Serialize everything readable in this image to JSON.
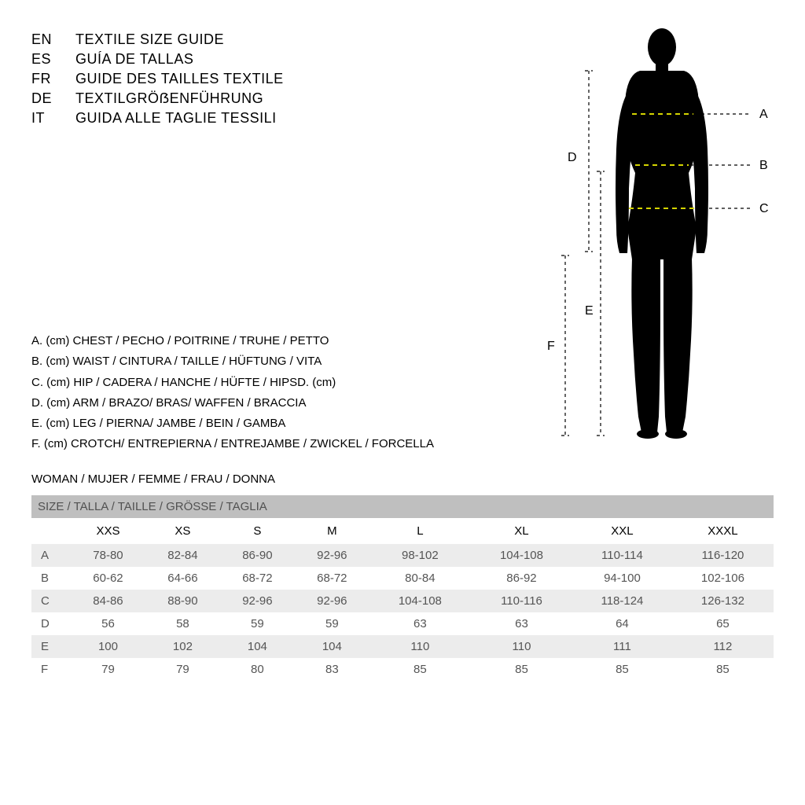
{
  "titles": [
    {
      "lang": "EN",
      "text": "TEXTILE SIZE GUIDE"
    },
    {
      "lang": "ES",
      "text": "GUÍA DE TALLAS"
    },
    {
      "lang": "FR",
      "text": "GUIDE DES TAILLES TEXTILE"
    },
    {
      "lang": "DE",
      "text": "TEXTILGRÖẞENFÜHRUNG"
    },
    {
      "lang": "IT",
      "text": "GUIDA ALLE TAGLIE TESSILI"
    }
  ],
  "legend": [
    "A. (cm) CHEST / PECHO / POITRINE / TRUHE / PETTO",
    "B. (cm) WAIST / CINTURA / TAILLE / HÜFTUNG / VITA",
    "C. (cm) HIP / CADERA / HANCHE / HÜFTE / HIPSD. (cm)",
    "D. (cm) ARM / BRAZO/ BRAS/ WAFFEN / BRACCIA",
    "E. (cm) LEG / PIERNA/ JAMBE / BEIN / GAMBA",
    "F. (cm) CROTCH/ ENTREPIERNA / ENTREJAMBE / ZWICKEL / FORCELLA"
  ],
  "woman_label": "WOMAN / MUJER / FEMME / FRAU / DONNA",
  "table": {
    "header_label": "SIZE / TALLA / TAILLE / GRÖSSE / TAGLIA",
    "columns": [
      "",
      "XXS",
      "XS",
      "S",
      "M",
      "L",
      "XL",
      "XXL",
      "XXXL"
    ],
    "rows": [
      [
        "A",
        "78-80",
        "82-84",
        "86-90",
        "92-96",
        "98-102",
        "104-108",
        "110-114",
        "116-120"
      ],
      [
        "B",
        "60-62",
        "64-66",
        "68-72",
        "68-72",
        "80-84",
        "86-92",
        "94-100",
        "102-106"
      ],
      [
        "C",
        "84-86",
        "88-90",
        "92-96",
        "92-96",
        "104-108",
        "110-116",
        "118-124",
        "126-132"
      ],
      [
        "D",
        "56",
        "58",
        "59",
        "59",
        "63",
        "63",
        "64",
        "65"
      ],
      [
        "E",
        "100",
        "102",
        "104",
        "104",
        "110",
        "110",
        "111",
        "112"
      ],
      [
        "F",
        "79",
        "79",
        "80",
        "83",
        "85",
        "85",
        "85",
        "85"
      ]
    ]
  },
  "diagram": {
    "silhouette_color": "#000000",
    "measure_line_color": "#d4d400",
    "guide_line_color": "#000000",
    "label_color": "#000000",
    "labels": {
      "A": "A",
      "B": "B",
      "C": "C",
      "D": "D",
      "E": "E",
      "F": "F"
    }
  }
}
